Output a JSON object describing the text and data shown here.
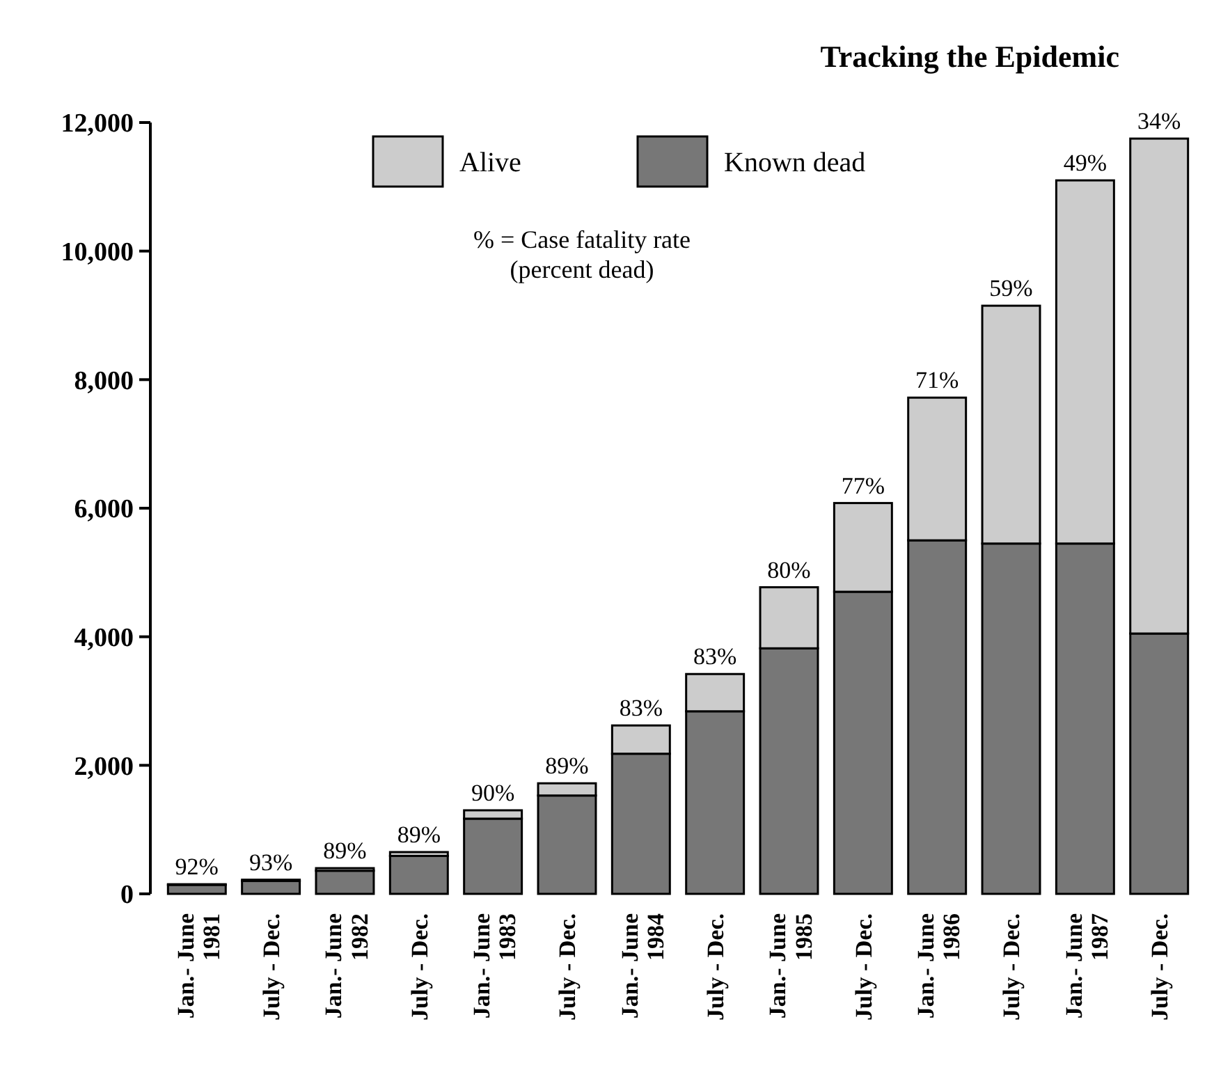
{
  "chart_data": {
    "type": "bar",
    "title": "Tracking the Epidemic",
    "stacked": true,
    "categories": [
      "Jan.- June\n1981",
      "July - Dec.",
      "Jan.- June\n1982",
      "July - Dec.",
      "Jan.- June\n1983",
      "July - Dec.",
      "Jan.- June\n1984",
      "July - Dec.",
      "Jan.- June\n1985",
      "July - Dec.",
      "Jan.- June\n1986",
      "July - Dec.",
      "Jan.- June\n1987",
      "July - Dec."
    ],
    "series": [
      {
        "name": "Known dead",
        "color": "#777777",
        "values": [
          140,
          200,
          360,
          590,
          1170,
          1530,
          2180,
          2840,
          3820,
          4700,
          5500,
          5450,
          5450,
          4050
        ]
      },
      {
        "name": "Alive",
        "color": "#cccccc",
        "values": [
          10,
          20,
          40,
          60,
          130,
          190,
          440,
          580,
          950,
          1380,
          2220,
          3700,
          5650,
          7700
        ]
      }
    ],
    "ylim": [
      0,
      12000
    ],
    "yticks": [
      {
        "value": 0,
        "label": "0"
      },
      {
        "value": 2000,
        "label": "2,000"
      },
      {
        "value": 4000,
        "label": "4,000"
      },
      {
        "value": 6000,
        "label": "6,000"
      },
      {
        "value": 8000,
        "label": "8,000"
      },
      {
        "value": 10000,
        "label": "10,000"
      },
      {
        "value": 12000,
        "label": "12,000"
      }
    ],
    "grid": false,
    "legend": "top left",
    "annotations": [
      "% = Case fatality rate\n(percent dead)",
      "92%",
      "93%",
      "89%",
      "89%",
      "90%",
      "89%",
      "83%",
      "83%",
      "80%",
      "77%",
      "71%",
      "59%",
      "49%",
      "34%"
    ]
  }
}
